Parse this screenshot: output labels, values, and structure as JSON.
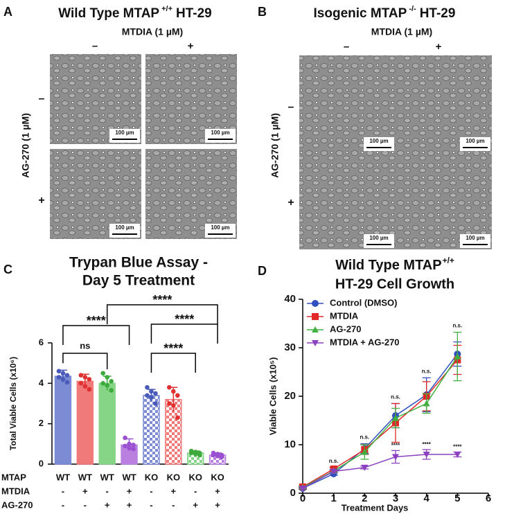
{
  "panels": [
    {
      "letter": "A",
      "title": "Wild Type MTAP",
      "title_superscript": "+/+",
      "title_suffix": "HT-29",
      "column_header": "MTDIA (1 µM)",
      "column_labels": [
        "–",
        "+"
      ],
      "row_header": "AG-270 (1 µM)",
      "row_labels": [
        "–",
        "+"
      ],
      "scale_bars": [
        "100 µm",
        "100 µm",
        "100 µm",
        "100 µm"
      ]
    },
    {
      "letter": "B",
      "title": "Isogenic MTAP",
      "title_superscript": "-/-",
      "title_suffix": "HT-29",
      "column_header": "MTDIA (1 µM)",
      "column_labels": [
        "–",
        "+"
      ],
      "row_header": "AG-270 (1 µM)",
      "row_labels": [
        "–",
        "+"
      ],
      "scale_bars": [
        "100 µm",
        "100 µm",
        "100 µm",
        "100 µm"
      ]
    }
  ],
  "chart_data": [
    {
      "type": "bar",
      "panel_label": "C",
      "title": [
        "Trypan Blue Assay -",
        "Day 5 Treatment"
      ],
      "ylabel": "Total Viable Cells (x10⁶)",
      "values": [
        4.35,
        4.1,
        4.0,
        0.95,
        3.4,
        3.2,
        0.55,
        0.45
      ],
      "errors": [
        0.3,
        0.35,
        0.35,
        0.3,
        0.3,
        0.6,
        0.1,
        0.1
      ],
      "points": [
        [
          4.6,
          4.5,
          4.4,
          4.3,
          4.2,
          4.05
        ],
        [
          4.4,
          4.3,
          4.2,
          4.0,
          3.85,
          3.7
        ],
        [
          4.5,
          4.3,
          4.1,
          4.0,
          3.9,
          3.65
        ],
        [
          1.3,
          1.0,
          0.95,
          0.9,
          0.8,
          0.75
        ],
        [
          3.8,
          3.6,
          3.5,
          3.4,
          3.3,
          3.0
        ],
        [
          3.8,
          3.6,
          3.4,
          3.0,
          2.9,
          2.3
        ],
        [
          0.65,
          0.6,
          0.55,
          0.55,
          0.5,
          0.45
        ],
        [
          0.55,
          0.5,
          0.45,
          0.45,
          0.4,
          0.35
        ]
      ],
      "colors": [
        "#7b8bd4",
        "#f07a7a",
        "#86d486",
        "#b980e0",
        "#7b8bd4",
        "#f07a7a",
        "#86d486",
        "#b980e0"
      ],
      "dot_colors": [
        "#4a5ab8",
        "#e03030",
        "#3caa3c",
        "#9a50d0",
        "#4a5ab8",
        "#e03030",
        "#3caa3c",
        "#9a50d0"
      ],
      "patterns": [
        "solid",
        "solid",
        "solid",
        "solid",
        "checker",
        "checker",
        "checker",
        "checker"
      ],
      "ylim": [
        0,
        6
      ],
      "yticks": [
        0,
        2,
        4,
        6
      ],
      "comparisons": [
        {
          "from": 0,
          "to": 2,
          "label": "ns"
        },
        {
          "from": 0,
          "to": 3,
          "label": "****"
        },
        {
          "from": 2,
          "to": 7,
          "label": "****"
        },
        {
          "from": 4,
          "to": 7,
          "label": "****"
        },
        {
          "from": 4,
          "to": 6,
          "label": "****"
        }
      ],
      "table": [
        {
          "label": "MTAP",
          "cells": [
            "WT",
            "WT",
            "WT",
            "WT",
            "KO",
            "KO",
            "KO",
            "KO"
          ]
        },
        {
          "label": "MTDIA",
          "cells": [
            "-",
            "+",
            "-",
            "+",
            "-",
            "+",
            "-",
            "+"
          ]
        },
        {
          "label": "AG-270",
          "cells": [
            "-",
            "-",
            "+",
            "+",
            "-",
            "-",
            "+",
            "+"
          ]
        }
      ]
    },
    {
      "type": "line",
      "panel_label": "D",
      "title": [
        "Wild Type MTAP",
        "HT-29 Cell Growth"
      ],
      "title_superscript": "+/+",
      "xlabel": "Treatment Days",
      "ylabel": "Viable Cells (x10⁵)",
      "x": [
        0,
        1,
        2,
        3,
        4,
        5
      ],
      "xlim": [
        0,
        6
      ],
      "xticks": [
        0,
        1,
        2,
        3,
        4,
        5,
        6
      ],
      "ylim": [
        0,
        40
      ],
      "yticks": [
        0,
        10,
        20,
        30,
        40
      ],
      "legend": "upper-left",
      "series": [
        {
          "name": "Control (DMSO)",
          "color": "#3050c0",
          "marker": "circle",
          "values": [
            1,
            4,
            9.2,
            16,
            20.3,
            28.7
          ],
          "errors": [
            0.2,
            0.3,
            1,
            2.5,
            3.5,
            2.5
          ]
        },
        {
          "name": "MTDIA",
          "color": "#e02828",
          "marker": "square",
          "values": [
            1.3,
            5,
            9,
            14.5,
            20,
            27.5
          ],
          "errors": [
            0.2,
            0.3,
            1,
            4,
            3,
            3
          ]
        },
        {
          "name": "AG-270",
          "color": "#40b040",
          "marker": "triangle",
          "values": [
            1.2,
            4.6,
            8.5,
            15.5,
            18.5,
            28.2
          ],
          "errors": [
            0.2,
            0.3,
            1.5,
            2,
            2,
            5
          ]
        },
        {
          "name": "MTDIA + AG-270",
          "color": "#8a40c0",
          "marker": "triangle-down",
          "values": [
            1,
            4.5,
            5.3,
            7.5,
            8,
            8
          ],
          "errors": [
            0.2,
            0.3,
            0.3,
            1.3,
            1,
            0.5
          ]
        }
      ],
      "significance": [
        {
          "x": 1,
          "label": "n.s."
        },
        {
          "x": 2,
          "label": "n.s."
        },
        {
          "x": 3,
          "label": "n.s."
        },
        {
          "x": 4,
          "label": "n.s."
        },
        {
          "x": 5,
          "label": "n.s."
        },
        {
          "x": 3,
          "label": "****",
          "series": 3
        },
        {
          "x": 4,
          "label": "****",
          "series": 3
        },
        {
          "x": 5,
          "label": "****",
          "series": 3
        }
      ]
    }
  ]
}
